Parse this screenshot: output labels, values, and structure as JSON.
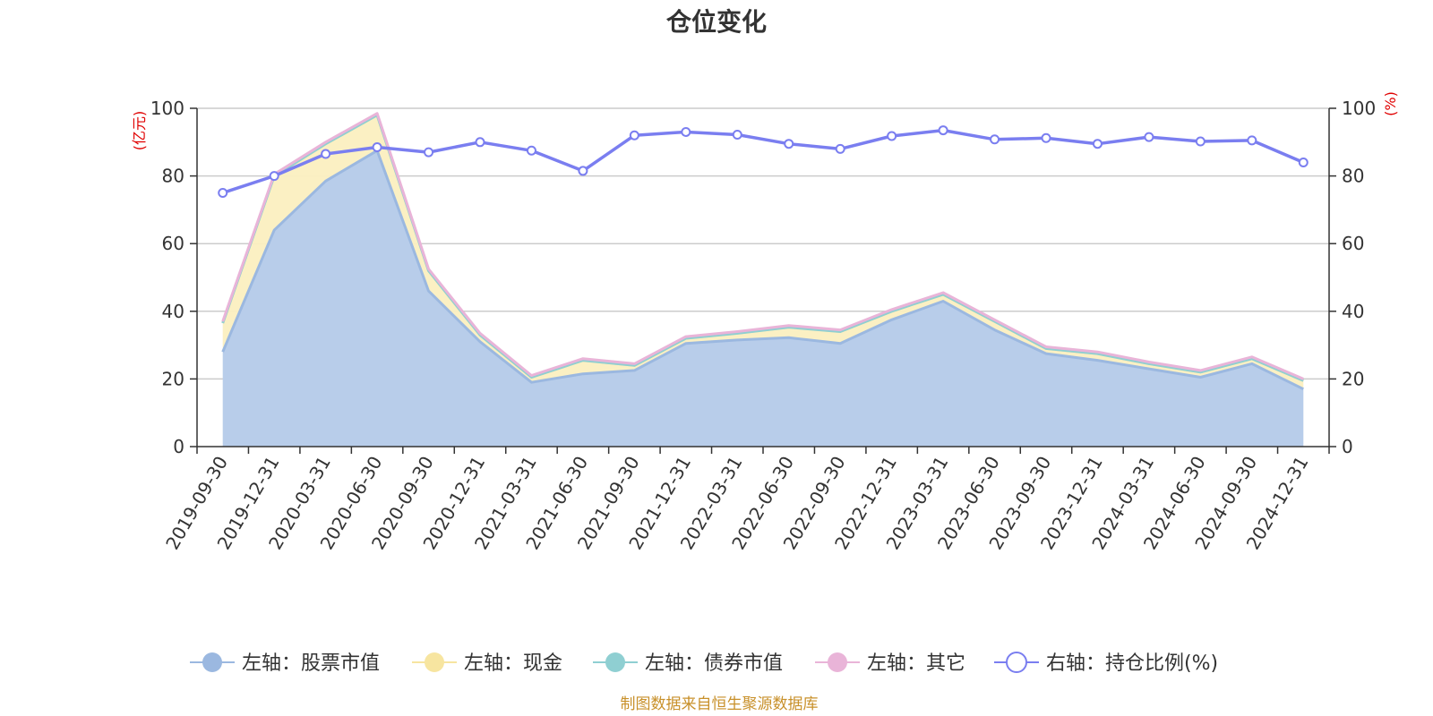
{
  "chart_data": {
    "type": "area",
    "title": "仓位变化",
    "x": [
      "2019-09-30",
      "2019-12-31",
      "2020-03-31",
      "2020-06-30",
      "2020-09-30",
      "2020-12-31",
      "2021-03-31",
      "2021-06-30",
      "2021-09-30",
      "2021-12-31",
      "2022-03-31",
      "2022-06-30",
      "2022-09-30",
      "2022-12-31",
      "2023-03-31",
      "2023-06-30",
      "2023-09-30",
      "2023-12-31",
      "2024-03-31",
      "2024-06-30",
      "2024-09-30",
      "2024-12-31"
    ],
    "left_axis": {
      "unit": "(亿元)",
      "ylim": [
        0,
        100
      ],
      "ticks": [
        0,
        20,
        40,
        60,
        80,
        100
      ]
    },
    "right_axis": {
      "unit": "(%)",
      "ylim": [
        0,
        100
      ],
      "ticks": [
        0,
        20,
        40,
        60,
        80,
        100
      ]
    },
    "series": [
      {
        "name": "左轴：股票市值",
        "axis": "left",
        "stacked": true,
        "color": "#9bb8e0",
        "fill": "#b8cdea",
        "values": [
          28,
          64,
          78.5,
          87.5,
          46,
          31,
          19,
          21.5,
          22.5,
          30.5,
          31.5,
          32.2,
          30.5,
          37.5,
          43,
          34.5,
          27.5,
          25.5,
          23,
          20.5,
          24.5,
          17
        ]
      },
      {
        "name": "左轴：现金",
        "axis": "left",
        "stacked": true,
        "color": "#f7e5a0",
        "fill": "#fbefc0",
        "values": [
          8.5,
          16,
          11,
          10.5,
          6,
          2,
          1.5,
          4,
          1.5,
          1.5,
          2,
          3.1,
          3.5,
          2.5,
          2,
          2.5,
          1.5,
          2,
          1.5,
          1.5,
          1.5,
          2.5
        ]
      },
      {
        "name": "左轴：债券市值",
        "axis": "left",
        "stacked": true,
        "color": "#8fcfd2",
        "fill": "#b5e0e2",
        "values": [
          0,
          0,
          0,
          0,
          0,
          0,
          0,
          0,
          0,
          0,
          0,
          0,
          0,
          0,
          0,
          0,
          0,
          0,
          0,
          0,
          0,
          0
        ]
      },
      {
        "name": "左轴：其它",
        "axis": "left",
        "stacked": true,
        "color": "#e9b4d8",
        "fill": "#e9b4d8",
        "values": [
          0.5,
          0.5,
          0.5,
          0.5,
          0.5,
          0.5,
          0.5,
          0.5,
          0.5,
          0.5,
          0.5,
          0.5,
          0.5,
          0.5,
          0.5,
          0.5,
          0.5,
          0.5,
          0.5,
          0.5,
          0.5,
          0.5
        ]
      },
      {
        "name": "右轴：持仓比例(%)",
        "axis": "right",
        "stacked": false,
        "color": "#7a7ef0",
        "values": [
          75,
          80,
          86.5,
          88.5,
          87,
          90,
          87.5,
          81.5,
          92,
          93,
          92.2,
          89.5,
          88,
          91.8,
          93.5,
          90.8,
          91.2,
          89.5,
          91.5,
          90.2,
          90.5,
          84
        ]
      }
    ],
    "legend_position": "bottom",
    "source_note": "制图数据来自恒生聚源数据库"
  }
}
